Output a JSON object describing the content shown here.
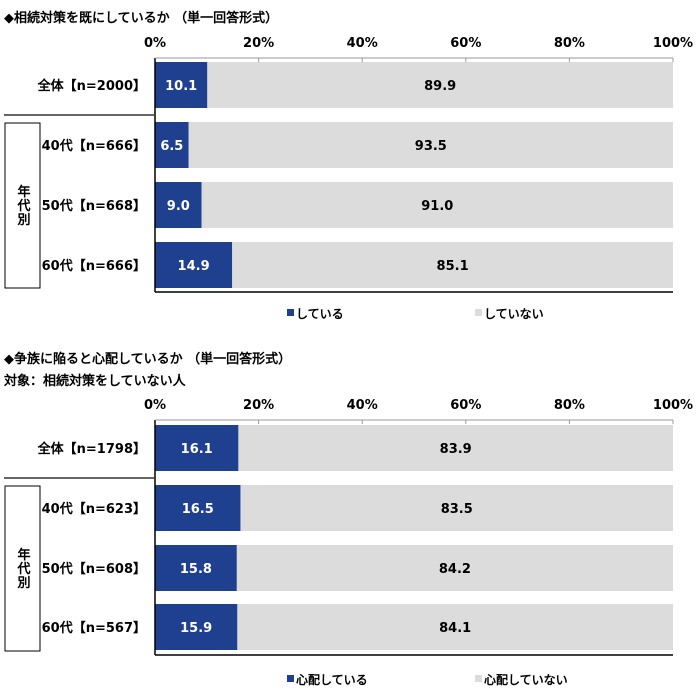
{
  "chart_data": [
    {
      "type": "bar",
      "stacked": true,
      "orientation": "horizontal",
      "title": "◆相続対策を既にしているか （単一回答形式）",
      "subtitle": "",
      "xlim": [
        0,
        100
      ],
      "ticks": [
        "0%",
        "20%",
        "40%",
        "60%",
        "80%",
        "100%"
      ],
      "group_label": "年代別",
      "categories": [
        "全体【n=2000】",
        "40代【n=666】",
        "50代【n=668】",
        "60代【n=666】"
      ],
      "series": [
        {
          "name": "している",
          "color": "#1f3f8f",
          "values": [
            10.1,
            6.5,
            9.0,
            14.9
          ]
        },
        {
          "name": "していない",
          "color": "#dcdcdc",
          "values": [
            89.9,
            93.5,
            91.0,
            85.1
          ]
        }
      ],
      "legend": "bottom"
    },
    {
      "type": "bar",
      "stacked": true,
      "orientation": "horizontal",
      "title": "◆争族に陥ると心配しているか （単一回答形式）",
      "subtitle": "対象：相続対策をしていない人",
      "xlim": [
        0,
        100
      ],
      "ticks": [
        "0%",
        "20%",
        "40%",
        "60%",
        "80%",
        "100%"
      ],
      "group_label": "年代別",
      "categories": [
        "全体【n=1798】",
        "40代【n=623】",
        "50代【n=608】",
        "60代【n=567】"
      ],
      "series": [
        {
          "name": "心配している",
          "color": "#1f3f8f",
          "values": [
            16.1,
            16.5,
            15.8,
            15.9
          ]
        },
        {
          "name": "心配していない",
          "color": "#dcdcdc",
          "values": [
            83.9,
            83.5,
            84.2,
            84.1
          ]
        }
      ],
      "legend": "bottom"
    }
  ]
}
